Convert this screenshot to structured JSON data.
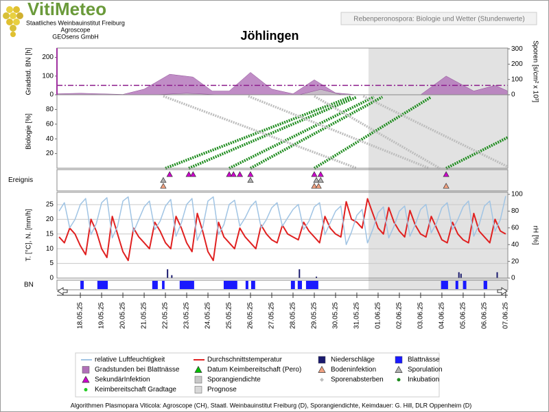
{
  "header": {
    "logo": "VitiMeteo",
    "org": [
      "Staatliches Weinbauinstitut Freiburg",
      "Agroscope",
      "GEOsens GmbH"
    ],
    "subtitle": "Rebenperonospora: Biologie und Wetter (Stundenwerte)"
  },
  "footer": "Algorithmen Plasmopara Viticola: Agroscope (CH), Staatl. Weinbauinstitut Freiburg (D), Sporangiendichte, Keimdauer: G. Hill, DLR Oppenheim (D)",
  "chart_data": {
    "type": "multi-panel",
    "title": "Jöhlingen",
    "categories": [
      "18.05.25",
      "19.05.25",
      "20.05.25",
      "21.05.25",
      "22.05.25",
      "23.05.25",
      "24.05.25",
      "25.05.25",
      "26.05.25",
      "27.05.25",
      "28.05.25",
      "29.05.25",
      "30.05.25",
      "31.05.25",
      "01.06.25",
      "02.06.25",
      "03.06.25",
      "04.06.25",
      "05.06.25",
      "06.06.25",
      "07.06.25"
    ],
    "xticks": [
      0,
      1,
      2,
      3,
      4,
      5,
      6,
      7,
      8,
      9,
      10,
      11,
      12,
      13,
      14,
      15,
      16,
      17,
      18,
      19,
      20
    ],
    "xlim": [
      -1.1,
      20.1
    ],
    "panels": [
      {
        "type": "area",
        "ylabel": "Gradstd. BN [h]",
        "y2label": "Sporen [s/cm² x 10³]",
        "ylim": [
          0,
          250
        ],
        "yticks": [
          0,
          100,
          200
        ],
        "y2lim": [
          0,
          305
        ],
        "y2ticks": [
          0,
          100,
          200,
          300
        ],
        "threshold": 50,
        "threshold_color": "#8b1a8b",
        "series": [
          {
            "name": "Gradstunden bei Blattnässe",
            "color": "#b070b8",
            "symbol": "square",
            "x": [
              -1.1,
              0,
              2,
              3,
              4.2,
              5.3,
              6.2,
              7,
              8,
              9,
              10,
              11,
              12,
              13,
              14,
              15,
              16,
              17.2,
              18.5,
              19.5,
              20.1
            ],
            "values": [
              5,
              8,
              2,
              30,
              110,
              95,
              20,
              20,
              120,
              30,
              5,
              80,
              10,
              0,
              0,
              0,
              0,
              100,
              20,
              50,
              20
            ]
          },
          {
            "name": "Sporangiendichte",
            "color": "#c8c8c8",
            "symbol": "square",
            "axis": "y2",
            "x": [
              3.5,
              5,
              6.5,
              10.3,
              11.3,
              12.3
            ],
            "values": [
              0,
              10,
              0,
              0,
              35,
              0
            ]
          }
        ]
      },
      {
        "type": "line",
        "ylabel": "Biologie [%]",
        "ylim": [
          0,
          100
        ],
        "yticks": [
          20,
          40,
          60,
          80
        ],
        "series": [
          {
            "name": "Inkubation",
            "color": "#1e8c1e",
            "symbol": "dot",
            "lines": [
              {
                "x": [
                  4.0,
                  12.7
                ],
                "values": [
                  0,
                  97
                ]
              },
              {
                "x": [
                  5.1,
                  13.0
                ],
                "values": [
                  0,
                  97
                ]
              },
              {
                "x": [
                  7.0,
                  13.8
                ],
                "values": [
                  0,
                  97
                ]
              },
              {
                "x": [
                  8.0,
                  14.2
                ],
                "values": [
                  0,
                  97
                ]
              },
              {
                "x": [
                  11.0,
                  16.5
                ],
                "values": [
                  0,
                  97
                ]
              },
              {
                "x": [
                  17.2,
                  20.1
                ],
                "values": [
                  0,
                  42
                ]
              }
            ]
          },
          {
            "name": "Sporenabsterben",
            "color": "#bdbdbd",
            "symbol": "diamond",
            "lines": [
              {
                "x": [
                  3.9,
                  13.0
                ],
                "values": [
                  98,
                  0
                ]
              },
              {
                "x": [
                  7.9,
                  16.4
                ],
                "values": [
                  98,
                  0
                ]
              },
              {
                "x": [
                  11.0,
                  16.9
                ],
                "values": [
                  98,
                  0
                ]
              },
              {
                "x": [
                  13.3,
                  20.1
                ],
                "values": [
                  98,
                  2
                ]
              }
            ]
          }
        ]
      },
      {
        "type": "events",
        "label": "Ereignis",
        "series": [
          {
            "name": "SekundärInfektion",
            "color": "#cc00cc",
            "symbol": "triangle",
            "x": [
              4.2,
              5.1,
              5.3,
              7.0,
              7.2,
              7.5,
              8.0,
              11.0,
              11.3,
              17.2
            ]
          },
          {
            "name": "Sporulation",
            "color": "#b0b0b0",
            "symbol": "triangle",
            "x": [
              3.9,
              8.0,
              11.1,
              11.3
            ]
          },
          {
            "name": "Bodeninfektion",
            "color": "#f0a080",
            "symbol": "triangle",
            "x": [
              3.9,
              11.0,
              11.2,
              17.2
            ]
          }
        ]
      },
      {
        "type": "line",
        "ylabel": "T. [°C], N. [mm/h]",
        "y2label": "rH [%]",
        "ylim": [
          0,
          29.2
        ],
        "yticks": [
          0,
          5,
          10,
          15,
          20,
          25
        ],
        "y2lim": [
          0,
          102.5
        ],
        "y2ticks": [
          0,
          20,
          40,
          60,
          80,
          100
        ],
        "grid": true,
        "x": [
          -1,
          -0.75,
          -0.5,
          -0.25,
          0,
          0.25,
          0.5,
          0.75,
          1,
          1.25,
          1.5,
          1.75,
          2,
          2.25,
          2.5,
          2.75,
          3,
          3.25,
          3.5,
          3.75,
          4,
          4.25,
          4.5,
          4.75,
          5,
          5.25,
          5.5,
          5.75,
          6,
          6.25,
          6.5,
          6.75,
          7,
          7.25,
          7.5,
          7.75,
          8,
          8.25,
          8.5,
          8.75,
          9,
          9.25,
          9.5,
          9.75,
          10,
          10.25,
          10.5,
          10.75,
          11,
          11.25,
          11.5,
          11.75,
          12,
          12.25,
          12.5,
          12.75,
          13,
          13.25,
          13.5,
          13.75,
          14,
          14.25,
          14.5,
          14.75,
          15,
          15.25,
          15.5,
          15.75,
          16,
          16.25,
          16.5,
          16.75,
          17,
          17.25,
          17.5,
          17.75,
          18,
          18.25,
          18.5,
          18.75,
          19,
          19.25,
          19.5,
          19.75,
          20
        ],
        "series": [
          {
            "name": "Durchschnittstemperatur",
            "color": "#e02020",
            "symbol": "line",
            "values": [
              14,
              12,
              17,
              15,
              11,
              8,
              20,
              16,
              10,
              7,
              21,
              15,
              9,
              6,
              17,
              14,
              12,
              10,
              19,
              16,
              12,
              10,
              21,
              17,
              12,
              9,
              22,
              16,
              9,
              6,
              19,
              14,
              12,
              10,
              17,
              14,
              12,
              10,
              18,
              15,
              13,
              12,
              18,
              15,
              14,
              13,
              19,
              16,
              14,
              12,
              21,
              17,
              15,
              14,
              26,
              20,
              19,
              17,
              27,
              22,
              17,
              15,
              24,
              19,
              16,
              14,
              23,
              18,
              15,
              14,
              21,
              17,
              13,
              12,
              19,
              15,
              13,
              12,
              22,
              16,
              14,
              12,
              20,
              16,
              15
            ]
          },
          {
            "name": "relative Luftfeuchtigkeit",
            "color": "#a0c4e4",
            "symbol": "line",
            "axis": "y2",
            "values": [
              80,
              90,
              60,
              70,
              88,
              95,
              52,
              65,
              90,
              96,
              48,
              62,
              92,
              97,
              55,
              70,
              85,
              92,
              58,
              68,
              86,
              94,
              50,
              66,
              88,
              95,
              45,
              60,
              92,
              97,
              52,
              64,
              88,
              93,
              62,
              72,
              85,
              92,
              60,
              70,
              84,
              90,
              62,
              72,
              82,
              88,
              58,
              68,
              85,
              90,
              52,
              66,
              80,
              86,
              40,
              55,
              75,
              82,
              42,
              58,
              78,
              85,
              48,
              62,
              80,
              86,
              50,
              64,
              82,
              88,
              54,
              66,
              84,
              90,
              58,
              70,
              85,
              92,
              50,
              64,
              86,
              92,
              56,
              70,
              98
            ]
          },
          {
            "name": "Niederschläge",
            "color": "#1a1a6e",
            "symbol": "square",
            "bars": true,
            "x": [
              4.1,
              4.3,
              10.3,
              11.1,
              17.8,
              17.9,
              19.6
            ],
            "values": [
              3,
              1,
              3,
              0.5,
              2,
              1.5,
              2
            ]
          }
        ]
      },
      {
        "type": "intervals",
        "label": "BN",
        "series": [
          {
            "name": "Blattnässe",
            "color": "#1a1aff",
            "symbol": "square",
            "intervals": [
              [
                0.0,
                0.16
              ],
              [
                0.8,
                1.29
              ],
              [
                3.38,
                3.64
              ],
              [
                3.84,
                3.96
              ],
              [
                4.67,
                5.35
              ],
              [
                6.74,
                7.38
              ],
              [
                7.77,
                7.9
              ],
              [
                8.03,
                8.22
              ],
              [
                9.9,
                10.09
              ],
              [
                10.22,
                10.42
              ],
              [
                10.61,
                11.19
              ],
              [
                16.96,
                17.29
              ],
              [
                17.64,
                17.77
              ],
              [
                17.99,
                18.15
              ],
              [
                18.96,
                19.13
              ]
            ]
          }
        ]
      }
    ],
    "legend_extra": [
      {
        "name": "Datum Keimbereitschaft (Pero)",
        "color": "#00c000",
        "symbol": "triangle"
      },
      {
        "name": "Keimbereitschaft Gradtage",
        "color": "#22cc22",
        "symbol": "dot"
      },
      {
        "name": "Prognose",
        "color": "#d8d8d8",
        "symbol": "square",
        "x": 13.55
      }
    ]
  }
}
